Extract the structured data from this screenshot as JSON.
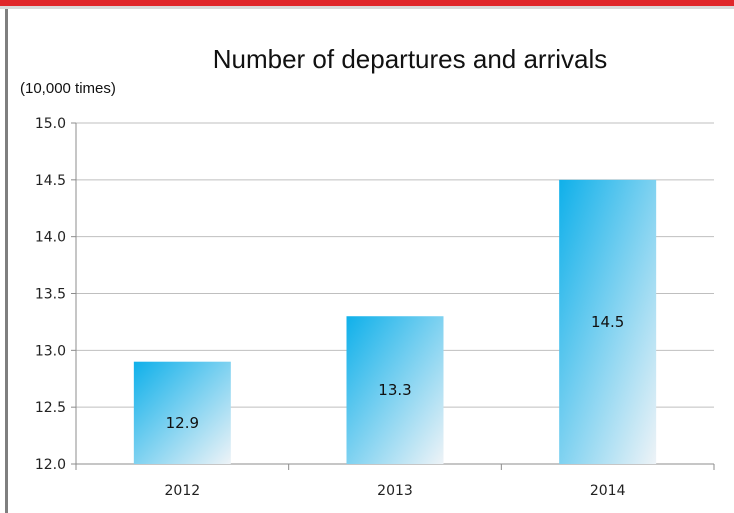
{
  "chart_data": {
    "type": "bar",
    "title": "Number of departures and arrivals",
    "unit_label": "(10,000 times)",
    "xlabel": "",
    "ylabel": "",
    "categories": [
      "2012",
      "2013",
      "2014"
    ],
    "values": [
      12.9,
      13.3,
      14.5
    ],
    "data_labels": [
      "12.9",
      "13.3",
      "14.5"
    ],
    "ylim": [
      12.0,
      15.0
    ],
    "y_ticks": [
      12.0,
      12.5,
      13.0,
      13.5,
      14.0,
      14.5,
      15.0
    ],
    "y_tick_labels": [
      "12.0",
      "12.5",
      "13.0",
      "13.5",
      "14.0",
      "14.5",
      "15.0"
    ],
    "grid": true,
    "legend": "none",
    "colors": {
      "bar_top": "#0fb0ea",
      "bar_bottom": "#eef3f7",
      "grid": "#bfbfbf",
      "accent_bar": "#e0262a"
    }
  }
}
